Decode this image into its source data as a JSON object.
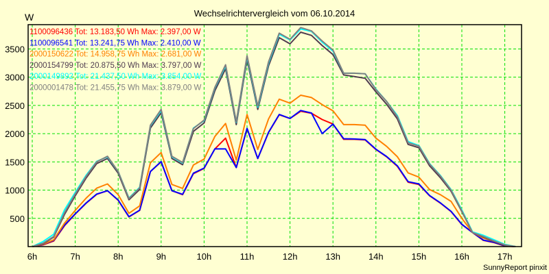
{
  "chart_data": {
    "type": "line",
    "title": "Wechselrichtervergleich vom 06.10.2014",
    "ylabel": "W",
    "xlabel": "",
    "footer": "SunnyReport pinxit",
    "xlim": [
      5.904,
      17.39
    ],
    "ylim": [
      0,
      3930
    ],
    "grid": true,
    "legend_position": "top-left",
    "x_ticks": [
      6,
      7,
      8,
      9,
      10,
      11,
      12,
      13,
      14,
      15,
      16,
      17
    ],
    "x_tick_labels": [
      "6h",
      "7h",
      "8h",
      "9h",
      "10h",
      "11h",
      "12h",
      "13h",
      "14h",
      "15h",
      "16h",
      "17h"
    ],
    "y_ticks": [
      500,
      1000,
      1500,
      2000,
      2500,
      3000,
      3500
    ],
    "y_tick_labels": [
      "500",
      "1000",
      "1500",
      "2000",
      "2500",
      "3000",
      "3500"
    ],
    "x_start": 6.0,
    "x_step": 0.25,
    "series": [
      {
        "name": "1100096436 Tot: 13.183,50 Wh Max: 2.397,00 W",
        "color": "#ff0000",
        "values": [
          0,
          30,
          100,
          370,
          575,
          765,
          925,
          990,
          820,
          525,
          640,
          1330,
          1500,
          990,
          920,
          1290,
          1385,
          1730,
          1920,
          1400,
          2090,
          1560,
          2020,
          2335,
          2270,
          2397,
          2360,
          2250,
          2170,
          1900,
          1900,
          1890,
          1720,
          1590,
          1420,
          1140,
          1100,
          900,
          770,
          620,
          390,
          250,
          110,
          70,
          10,
          0
        ]
      },
      {
        "name": "1100096541 Tot: 13.241,75 Wh Max: 2.410,00 W",
        "color": "#0000ff",
        "values": [
          0,
          35,
          110,
          380,
          580,
          770,
          930,
          990,
          825,
          530,
          645,
          1330,
          1505,
          990,
          925,
          1300,
          1390,
          1730,
          1730,
          1400,
          2095,
          1560,
          2025,
          2340,
          2270,
          2410,
          2365,
          2000,
          2170,
          1910,
          1905,
          1895,
          1725,
          1595,
          1430,
          1150,
          1110,
          905,
          775,
          625,
          395,
          250,
          115,
          75,
          15,
          0
        ]
      },
      {
        "name": "2000150622 Tot: 14.958,75 Wh Max: 2.681,00 W",
        "color": "#ff8000",
        "values": [
          0,
          40,
          120,
          415,
          640,
          855,
          1035,
          1110,
          920,
          590,
          720,
          1485,
          1665,
          1100,
          1030,
          1445,
          1550,
          1950,
          2180,
          1530,
          2340,
          1720,
          2260,
          2610,
          2540,
          2681,
          2640,
          2515,
          2405,
          2160,
          2160,
          2150,
          1920,
          1775,
          1590,
          1305,
          1230,
          1010,
          920,
          800,
          500,
          250,
          150,
          90,
          30,
          0
        ]
      },
      {
        "name": "2000154799 Tot: 20.875,50 Wh Max: 3.797,00 W",
        "color": "#503c50",
        "values": [
          0,
          50,
          170,
          570,
          900,
          1210,
          1470,
          1560,
          1300,
          830,
          1010,
          2100,
          2370,
          1560,
          1450,
          2040,
          2190,
          2760,
          3150,
          2160,
          3310,
          2430,
          3200,
          3700,
          3590,
          3797,
          3740,
          3560,
          3400,
          3040,
          3010,
          2980,
          2740,
          2520,
          2260,
          1810,
          1750,
          1430,
          1220,
          980,
          620,
          250,
          170,
          90,
          20,
          0
        ]
      },
      {
        "name": "2000149892 Tot: 21.437,50 Wh Max: 3.854,00 W",
        "color": "#00ffff",
        "values": [
          0,
          90,
          220,
          650,
          960,
          1260,
          1510,
          1590,
          1330,
          860,
          1050,
          2140,
          2410,
          1590,
          1480,
          2100,
          2230,
          2810,
          3200,
          2200,
          3360,
          2470,
          3250,
          3760,
          3660,
          3854,
          3810,
          3620,
          3460,
          3070,
          3070,
          3060,
          2790,
          2570,
          2320,
          1860,
          1790,
          1470,
          1260,
          1010,
          650,
          260,
          200,
          120,
          40,
          0
        ]
      },
      {
        "name": "2000001478 Tot: 21.455,75 Wh Max: 3.879,00 W",
        "color": "#808080",
        "values": [
          0,
          60,
          180,
          600,
          930,
          1240,
          1500,
          1600,
          1330,
          850,
          1040,
          2150,
          2430,
          1600,
          1490,
          2090,
          2240,
          2820,
          3220,
          2210,
          3380,
          2490,
          3270,
          3780,
          3670,
          3879,
          3820,
          3640,
          3480,
          3070,
          3070,
          3060,
          2780,
          2570,
          2300,
          1840,
          1780,
          1460,
          1250,
          1000,
          630,
          250,
          180,
          100,
          30,
          0
        ]
      }
    ]
  }
}
